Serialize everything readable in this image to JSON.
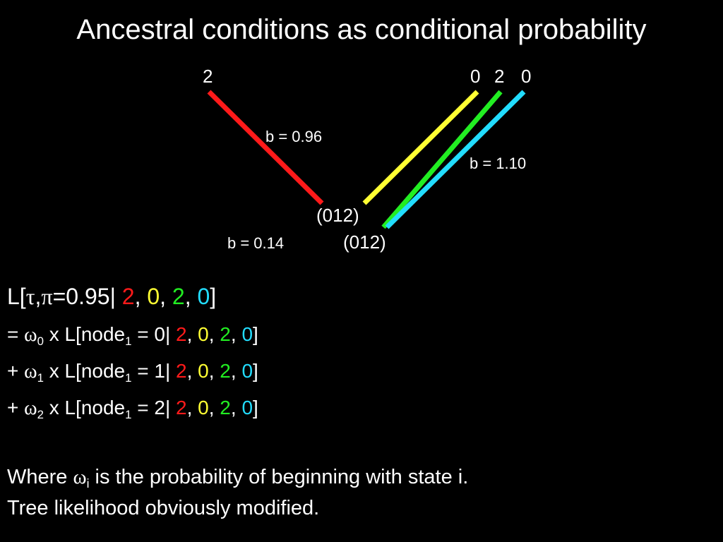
{
  "title": "Ancestral conditions as conditional probability",
  "tips": [
    "2",
    "0",
    "2",
    "0"
  ],
  "branch_lengths": {
    "left_upper": "b = 0.96",
    "right_upper": "b = 1.10",
    "bottom": "b = 0.14"
  },
  "node_labels": [
    "(012)",
    "(012)"
  ],
  "colors": {
    "red": "#ff1a1a",
    "yellow": "#ffff33",
    "green": "#22ee22",
    "cyan": "#22ddff"
  },
  "formula": {
    "line1": {
      "prefix": "L[",
      "tau": "τ",
      "comma": ",",
      "pi": "π",
      "rest": "=0.95|",
      "states": [
        "2",
        "0",
        "2",
        "0"
      ],
      "close": "]"
    },
    "rows": [
      {
        "op": "= ",
        "omega": "ω",
        "sub": "0",
        "mid": " x L[node",
        "node_sub": "1",
        "cond": " = 0|",
        "states": [
          "2",
          "0",
          "2",
          "0"
        ],
        "close": "]"
      },
      {
        "op": "+ ",
        "omega": "ω",
        "sub": "1",
        "mid": " x L[node",
        "node_sub": "1",
        "cond": " = 1|",
        "states": [
          "2",
          "0",
          "2",
          "0"
        ],
        "close": "]"
      },
      {
        "op": "+ ",
        "omega": "ω",
        "sub": "2",
        "mid": " x L[node",
        "node_sub": "1",
        "cond": " = 2|",
        "states": [
          "2",
          "0",
          "2",
          "0"
        ],
        "close": "]"
      }
    ],
    "sep": ", "
  },
  "notes": {
    "line1_a": "Where ",
    "line1_omega": "ω",
    "line1_sub": "i",
    "line1_b": " is the probability of beginning with state i.",
    "line2": "Tree likelihood obviously modified."
  }
}
